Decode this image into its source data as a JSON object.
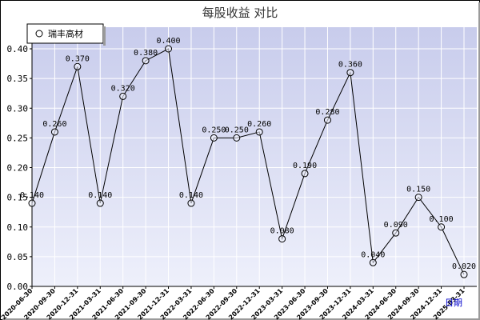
{
  "chart_data": {
    "type": "line",
    "title": "每股收益  对比",
    "xlabel": "日期",
    "ylabel": "",
    "ylim": [
      0,
      0.4
    ],
    "yticks": [
      "0.00",
      "0.05",
      "0.10",
      "0.15",
      "0.20",
      "0.25",
      "0.30",
      "0.35",
      "0.40"
    ],
    "grid": true,
    "legend_position": "top-left",
    "categories": [
      "2020-06-30",
      "2020-09-30",
      "2020-12-31",
      "2021-03-31",
      "2021-06-30",
      "2021-09-30",
      "2021-12-31",
      "2022-03-31",
      "2022-06-30",
      "2022-09-30",
      "2022-12-31",
      "2023-03-31",
      "2023-06-30",
      "2023-09-30",
      "2023-12-31",
      "2024-03-31",
      "2024-06-30",
      "2024-09-30",
      "2024-12-31",
      "2025-03-31"
    ],
    "series": [
      {
        "name": "瑞丰高材",
        "values": [
          0.14,
          0.26,
          0.37,
          0.14,
          0.32,
          0.38,
          0.4,
          0.14,
          0.25,
          0.25,
          0.26,
          0.08,
          0.19,
          0.28,
          0.36,
          0.04,
          0.09,
          0.15,
          0.1,
          0.02
        ],
        "labels": [
          "0.140",
          "0.260",
          "0.370",
          "0.140",
          "0.320",
          "0.380",
          "0.400",
          "0.140",
          "0.250",
          "0.250",
          "0.260",
          "0.080",
          "0.190",
          "0.280",
          "0.360",
          "0.040",
          "0.090",
          "0.150",
          "0.100",
          "0.020"
        ]
      }
    ],
    "colors": {
      "plot_bg_top": "#c8ccec",
      "plot_bg_bottom": "#eef0fb",
      "grid": "#ffffff",
      "line": "#000000",
      "xlabel": "#0000cc"
    }
  }
}
